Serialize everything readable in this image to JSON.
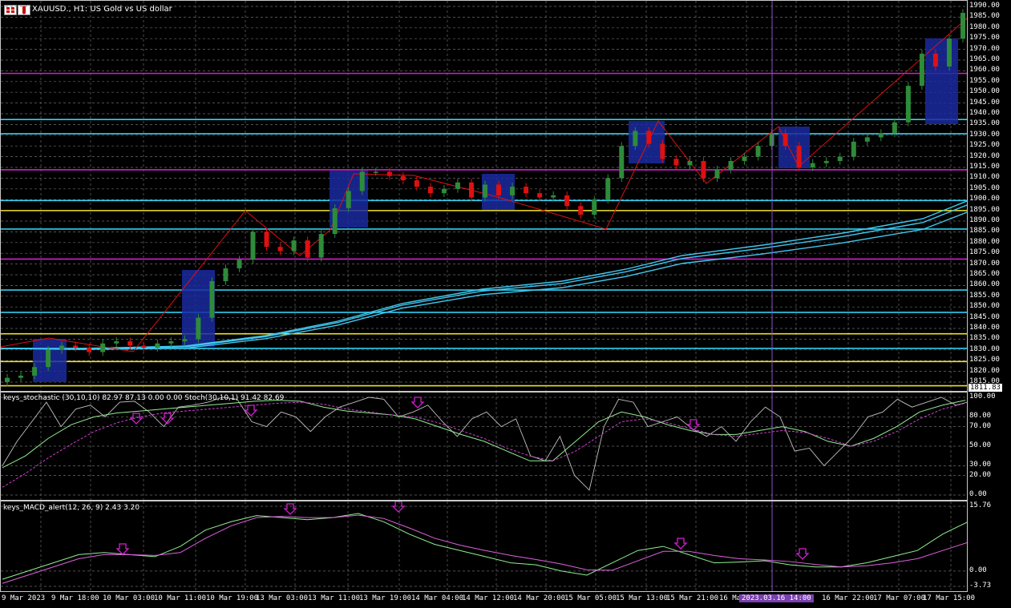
{
  "header": {
    "title": "XAUUSD., H1:  US Gold vs US dollar",
    "icons": [
      "chart-grid-icon",
      "chart-type-icon"
    ]
  },
  "price_axis": {
    "labels": [
      "1990.00",
      "1985.00",
      "1980.00",
      "1975.00",
      "1970.00",
      "1965.00",
      "1960.00",
      "1955.00",
      "1950.00",
      "1945.00",
      "1940.00",
      "1935.00",
      "1930.00",
      "1925.00",
      "1920.00",
      "1915.00",
      "1910.00",
      "1905.00",
      "1900.00",
      "1895.00",
      "1890.00",
      "1885.00",
      "1880.00",
      "1875.00",
      "1870.00",
      "1865.00",
      "1860.00",
      "1855.00",
      "1850.00",
      "1845.00",
      "1840.00",
      "1835.00",
      "1830.00",
      "1825.00",
      "1820.00",
      "1815.00"
    ],
    "current_price": "1811.83"
  },
  "stoch_panel": {
    "title": "keys_stochastic (30,10,10) 82.97 87.13 0.00 0.00 Stoch(30,10,1) 91.42 82.69",
    "levels": [
      "100.00",
      "80.00",
      "70.00",
      "50.00",
      "30.00",
      "20.00",
      "0.00"
    ]
  },
  "macd_panel": {
    "title": "keys_MACD_alert(12, 26, 9) 2.43 3.20",
    "levels": [
      "15.76",
      "0.00",
      "-3.73"
    ]
  },
  "time_axis": {
    "labels": [
      "9 Mar 2023",
      "9 Mar 18:00",
      "10 Mar 03:00",
      "10 Mar 11:00",
      "10 Mar 19:00",
      "13 Mar 03:00",
      "13 Mar 11:00",
      "13 Mar 19:00",
      "14 Mar 04:00",
      "14 Mar 12:00",
      "14 Mar 20:00",
      "15 Mar 05:00",
      "15 Mar 13:00",
      "15 Mar 21:00",
      "16 Ma",
      "16 Mar 22:00",
      "17 Mar 07:00",
      "17 Mar 15:00"
    ],
    "cursor_time": "2023.03.16 14:00"
  },
  "colors": {
    "bull": "#2e8b3a",
    "bear": "#e01010",
    "magenta": "#d020d0",
    "cyan": "#30d0f0",
    "yellow": "#f0e020",
    "box": "#1a2aa0",
    "ma": "#40c8f0",
    "zigzag": "#e01010",
    "stoch_main": "#90ee90",
    "stoch_signal": "#d040d0",
    "stoch_raw": "#c0c0c0",
    "macd_main": "#90ee90",
    "macd_signal": "#e060e0"
  },
  "chart_data": {
    "type": "candlestick",
    "symbol": "XAUUSD.",
    "timeframe": "H1",
    "ylim": [
      1811,
      1991
    ],
    "candles_close": [
      1817,
      1818,
      1822,
      1830,
      1832,
      1831,
      1829,
      1833,
      1834,
      1832,
      1831,
      1833,
      1834,
      1835,
      1845,
      1862,
      1868,
      1872,
      1885,
      1878,
      1876,
      1881,
      1873,
      1884,
      1896,
      1904,
      1913,
      1913,
      1911,
      1909,
      1906,
      1903,
      1905,
      1908,
      1901,
      1907,
      1902,
      1906,
      1903,
      1901,
      1902,
      1897,
      1893,
      1900,
      1910,
      1925,
      1932,
      1926,
      1919,
      1916,
      1918,
      1910,
      1914,
      1918,
      1920,
      1925,
      1931,
      1925,
      1915,
      1917,
      1918,
      1920,
      1927,
      1929,
      1931,
      1936,
      1953,
      1968,
      1962,
      1975,
      1987
    ]
  }
}
